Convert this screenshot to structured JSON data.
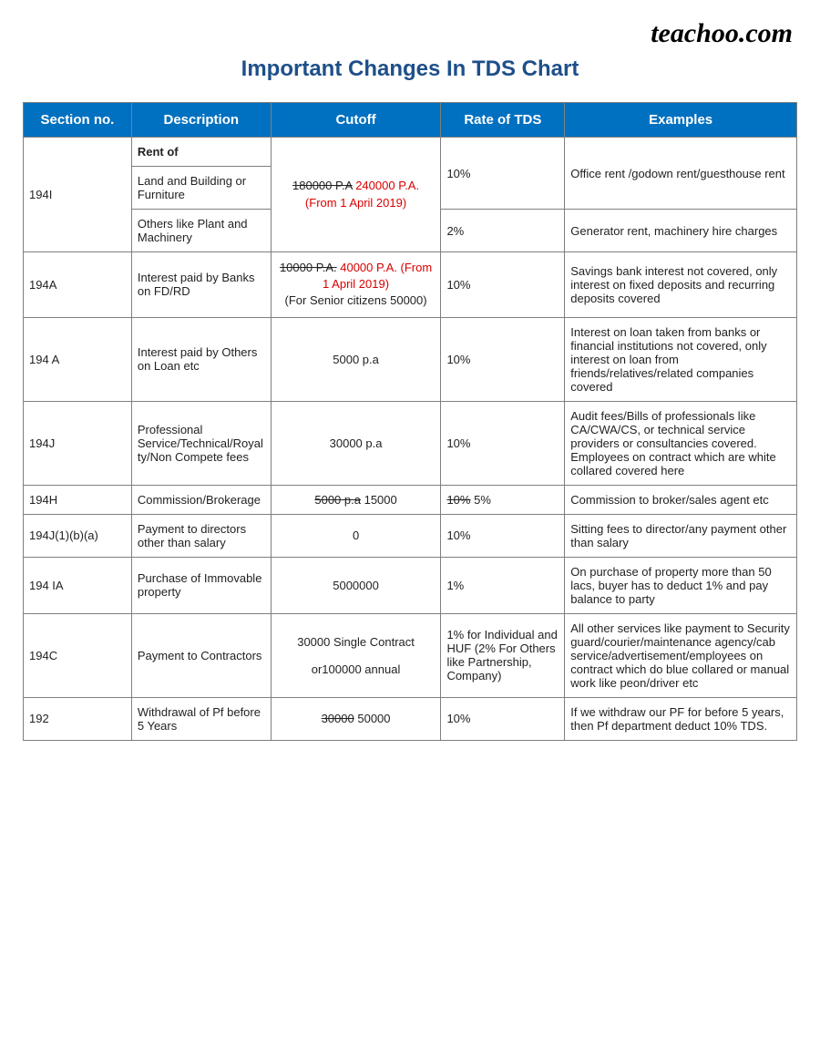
{
  "brand": "teachoo.com",
  "title": "Important Changes In TDS Chart",
  "columns": [
    "Section no.",
    "Description",
    "Cutoff",
    "Rate of TDS",
    "Examples"
  ],
  "row1": {
    "section": "194I",
    "desc_header": "Rent of",
    "desc_a": "Land and Building or Furniture",
    "desc_b": "Others like Plant and Machinery",
    "cutoff_strike": "180000 P.A",
    "cutoff_red": "240000 P.A. (From 1 April 2019)",
    "rate_a": "10%",
    "rate_b": "2%",
    "ex_a": "Office rent /godown rent/guesthouse rent",
    "ex_b": "Generator rent, machinery hire charges"
  },
  "row2": {
    "section": "194A",
    "desc": "Interest paid by Banks on FD/RD",
    "cutoff_strike": "10000 P.A.",
    "cutoff_red": "40000 P.A. (From 1 April 2019)",
    "cutoff_extra": "(For Senior citizens 50000)",
    "rate": "10%",
    "ex": "Savings bank interest not covered, only interest on fixed deposits and recurring deposits covered"
  },
  "row3": {
    "section": "194 A",
    "desc": "Interest paid by Others on Loan etc",
    "cutoff": "5000 p.a",
    "rate": "10%",
    "ex": "Interest on loan taken from banks or financial institutions not covered, only interest on loan from friends/relatives/related companies covered"
  },
  "row4": {
    "section": "194J",
    "desc": "Professional Service/Technical/Royalty/Non Compete fees",
    "cutoff": "30000 p.a",
    "rate": "10%",
    "ex": "Audit fees/Bills of professionals like CA/CWA/CS, or technical service providers or consultancies covered. Employees on contract which are white collared covered here"
  },
  "row5": {
    "section": "194H",
    "desc": "Commission/Brokerage",
    "cutoff_strike": "5000 p.a",
    "cutoff_new": "15000",
    "rate_strike": "10%",
    "rate_new": " 5%",
    "ex": "Commission to broker/sales agent etc"
  },
  "row6": {
    "section": "194J(1)(b)(a)",
    "desc": "Payment to directors other than salary",
    "cutoff": "0",
    "rate": "10%",
    "ex": "Sitting fees to director/any payment other than salary"
  },
  "row7": {
    "section": "194 IA",
    "desc": "Purchase of Immovable property",
    "cutoff": "5000000",
    "rate": "1%",
    "ex": "On purchase of property more than 50 lacs, buyer has to deduct 1% and pay balance to party"
  },
  "row8": {
    "section": "194C",
    "desc": "Payment to Contractors",
    "cutoff_a": "30000 Single Contract",
    "cutoff_b": "or100000 annual",
    "rate": "1% for Individual and HUF (2% For Others like Partnership, Company)",
    "ex": "All other services like payment to Security guard/courier/maintenance agency/cab service/advertisement/employees on contract which do blue collared or manual work like peon/driver etc"
  },
  "row9": {
    "section": "192",
    "desc": "Withdrawal of Pf before 5 Years",
    "cutoff_strike": "30000",
    "cutoff_new": " 50000",
    "rate": "10%",
    "ex": "If we withdraw our PF for before 5 years, then Pf department deduct 10% TDS."
  }
}
